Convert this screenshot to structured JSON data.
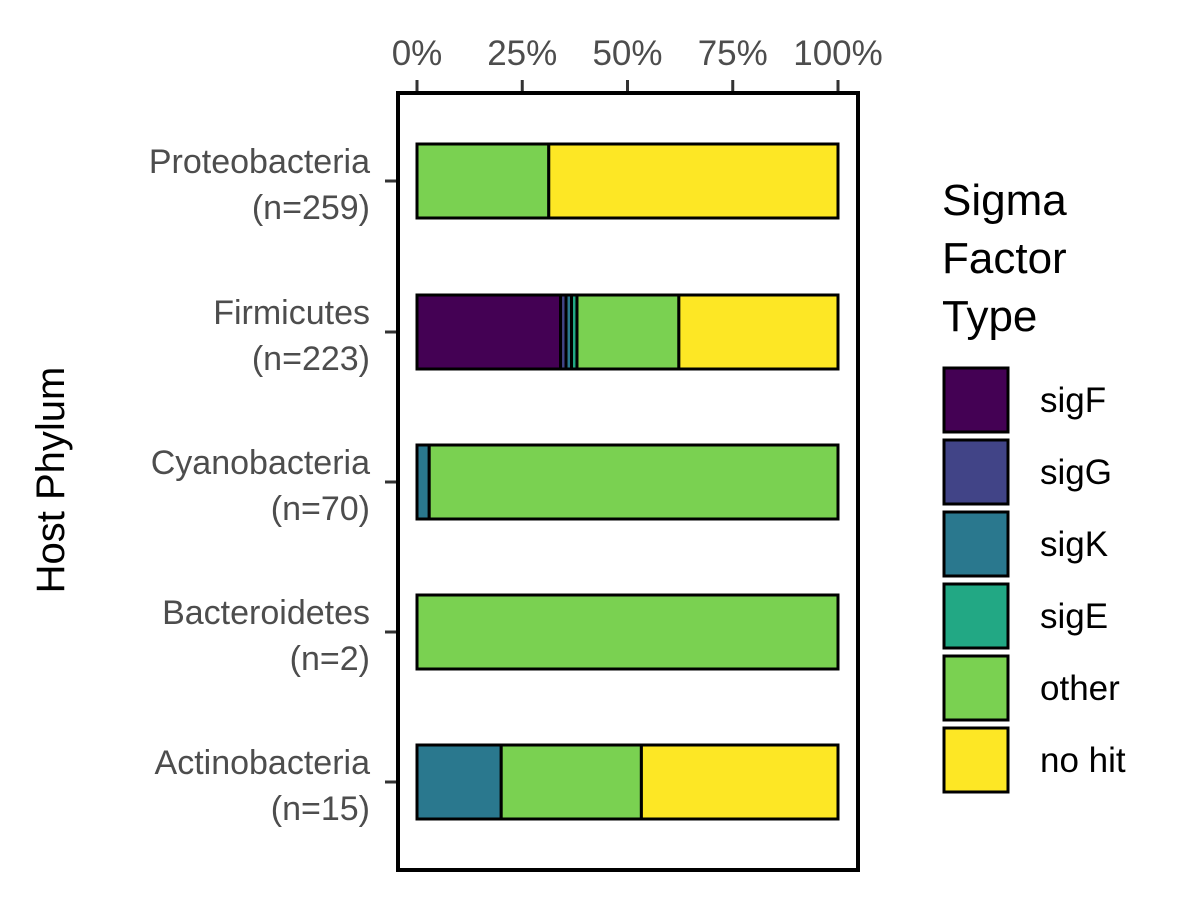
{
  "chart_data": {
    "type": "bar",
    "orientation": "horizontal",
    "stacked": "percent",
    "ylabel": "Host Phylum",
    "xlabel": "",
    "x_ticks": [
      "0%",
      "25%",
      "50%",
      "75%",
      "100%"
    ],
    "x_axis_position": "top",
    "xlim": [
      0,
      100
    ],
    "categories": [
      {
        "name": "Proteobacteria",
        "n": "(n=259)"
      },
      {
        "name": "Firmicutes",
        "n": "(n=223)"
      },
      {
        "name": "Cyanobacteria",
        "n": "(n=70)"
      },
      {
        "name": "Bacteroidetes",
        "n": "(n=2)"
      },
      {
        "name": "Actinobacteria",
        "n": "(n=15)"
      }
    ],
    "series": [
      {
        "name": "sigF",
        "color": "#440154",
        "values": [
          0,
          34.1,
          0,
          0,
          0
        ]
      },
      {
        "name": "sigG",
        "color": "#414487",
        "values": [
          0,
          1.3,
          0,
          0,
          0
        ]
      },
      {
        "name": "sigK",
        "color": "#2a788e",
        "values": [
          0,
          1.3,
          2.9,
          0,
          20.0
        ]
      },
      {
        "name": "sigE",
        "color": "#22a884",
        "values": [
          0,
          1.3,
          0,
          0,
          0
        ]
      },
      {
        "name": "other",
        "color": "#7ad151",
        "values": [
          31.3,
          24.2,
          97.1,
          100,
          33.3
        ]
      },
      {
        "name": "no hit",
        "color": "#fde725",
        "values": [
          68.7,
          37.8,
          0,
          0,
          46.7
        ]
      }
    ],
    "legend": {
      "title_lines": [
        "Sigma",
        "Factor",
        "Type"
      ],
      "position": "right"
    },
    "grid": false
  }
}
